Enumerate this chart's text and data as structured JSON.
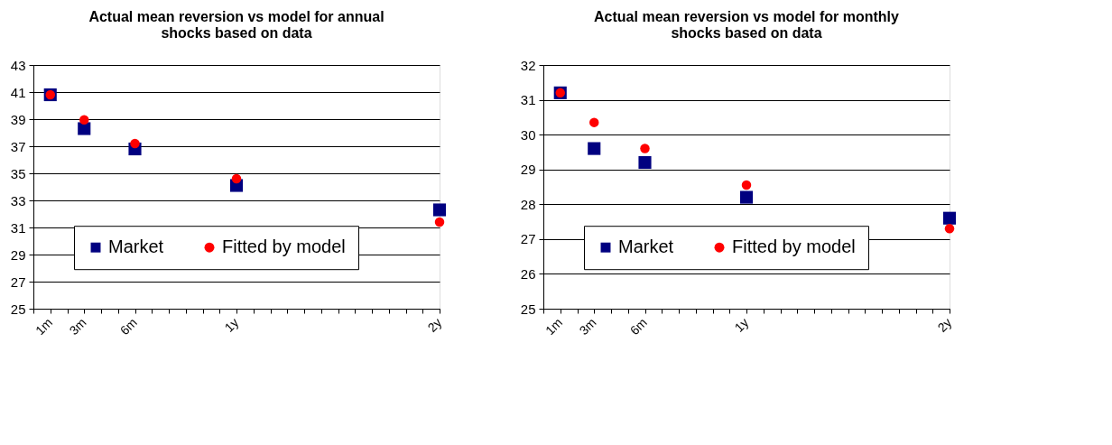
{
  "chart_data": [
    {
      "type": "scatter",
      "title": "Actual mean reversion vs model for annual shocks based on data",
      "categories": [
        "1m",
        null,
        "3m",
        null,
        null,
        "6m",
        null,
        null,
        null,
        null,
        null,
        "1y",
        null,
        null,
        null,
        null,
        null,
        null,
        null,
        null,
        null,
        null,
        null,
        "2y"
      ],
      "ylim": [
        25,
        43
      ],
      "yticks": [
        25,
        27,
        29,
        31,
        33,
        35,
        37,
        39,
        41,
        43
      ],
      "grid": "y",
      "legend": "bottom",
      "series": [
        {
          "name": "Market",
          "color": "#000080",
          "marker": "square",
          "values": [
            40.8,
            null,
            38.3,
            null,
            null,
            36.8,
            null,
            null,
            null,
            null,
            null,
            34.1,
            null,
            null,
            null,
            null,
            null,
            null,
            null,
            null,
            null,
            null,
            null,
            32.3
          ]
        },
        {
          "name": "Fitted by model",
          "color": "#ff0000",
          "marker": "circle",
          "values": [
            40.8,
            null,
            38.95,
            null,
            null,
            37.2,
            null,
            null,
            null,
            null,
            null,
            34.6,
            null,
            null,
            null,
            null,
            null,
            null,
            null,
            null,
            null,
            null,
            null,
            31.4
          ]
        }
      ]
    },
    {
      "type": "scatter",
      "title": "Actual mean reversion vs model for monthly shocks based on data",
      "categories": [
        "1m",
        null,
        "3m",
        null,
        null,
        "6m",
        null,
        null,
        null,
        null,
        null,
        "1y",
        null,
        null,
        null,
        null,
        null,
        null,
        null,
        null,
        null,
        null,
        null,
        "2y"
      ],
      "ylim": [
        25,
        32
      ],
      "yticks": [
        25,
        26,
        27,
        28,
        29,
        30,
        31,
        32
      ],
      "grid": "y",
      "legend": "bottom",
      "series": [
        {
          "name": "Market",
          "color": "#000080",
          "marker": "square",
          "values": [
            31.2,
            null,
            29.6,
            null,
            null,
            29.2,
            null,
            null,
            null,
            null,
            null,
            28.2,
            null,
            null,
            null,
            null,
            null,
            null,
            null,
            null,
            null,
            null,
            null,
            27.6
          ]
        },
        {
          "name": "Fitted by model",
          "color": "#ff0000",
          "marker": "circle",
          "values": [
            31.2,
            null,
            30.35,
            null,
            null,
            29.6,
            null,
            null,
            null,
            null,
            null,
            28.55,
            null,
            null,
            null,
            null,
            null,
            null,
            null,
            null,
            null,
            null,
            null,
            27.3
          ]
        }
      ]
    }
  ]
}
